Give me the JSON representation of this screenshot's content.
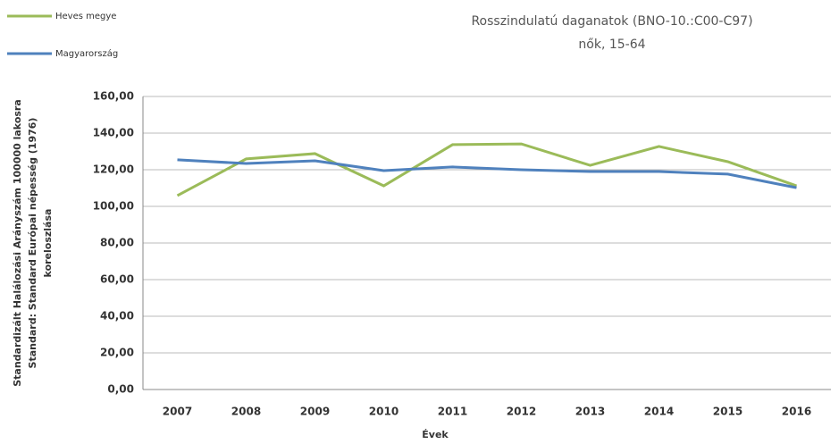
{
  "chart_data": {
    "type": "line",
    "title": "Rosszindulatú daganatok  (BNO-10.:C00-C97)",
    "subtitle": "nők, 15-64",
    "ylabel": [
      "Standardizált Halálozási Arányszám  100000 lakosra",
      "Standard: Standard Európai népesség (1976)",
      "koreloszlása"
    ],
    "xlabel": "Évek",
    "categories": [
      "2007",
      "2008",
      "2009",
      "2010",
      "2011",
      "2012",
      "2013",
      "2014",
      "2015",
      "2016"
    ],
    "series": [
      {
        "name": "Heves megye",
        "color": "#9bbb59",
        "values": [
          105.9,
          125.9,
          128.8,
          111.2,
          133.7,
          134.1,
          122.4,
          132.7,
          124.4,
          111.2
        ]
      },
      {
        "name": "Magyarország",
        "color": "#4f81bd",
        "values": [
          125.4,
          123.4,
          124.9,
          119.5,
          121.5,
          120.0,
          119.0,
          119.0,
          117.6,
          110.2
        ]
      }
    ],
    "ylim": [
      0,
      160
    ],
    "yticks": [
      {
        "value": 0,
        "label": "0,00"
      },
      {
        "value": 20,
        "label": "20,00"
      },
      {
        "value": 40,
        "label": "40,00"
      },
      {
        "value": 60,
        "label": "60,00"
      },
      {
        "value": 80,
        "label": "80,00"
      },
      {
        "value": 100,
        "label": "100,00"
      },
      {
        "value": 120,
        "label": "120,00"
      },
      {
        "value": 140,
        "label": "140,00"
      },
      {
        "value": 160,
        "label": "160,00"
      }
    ],
    "grid": true,
    "legend": "top-left"
  }
}
